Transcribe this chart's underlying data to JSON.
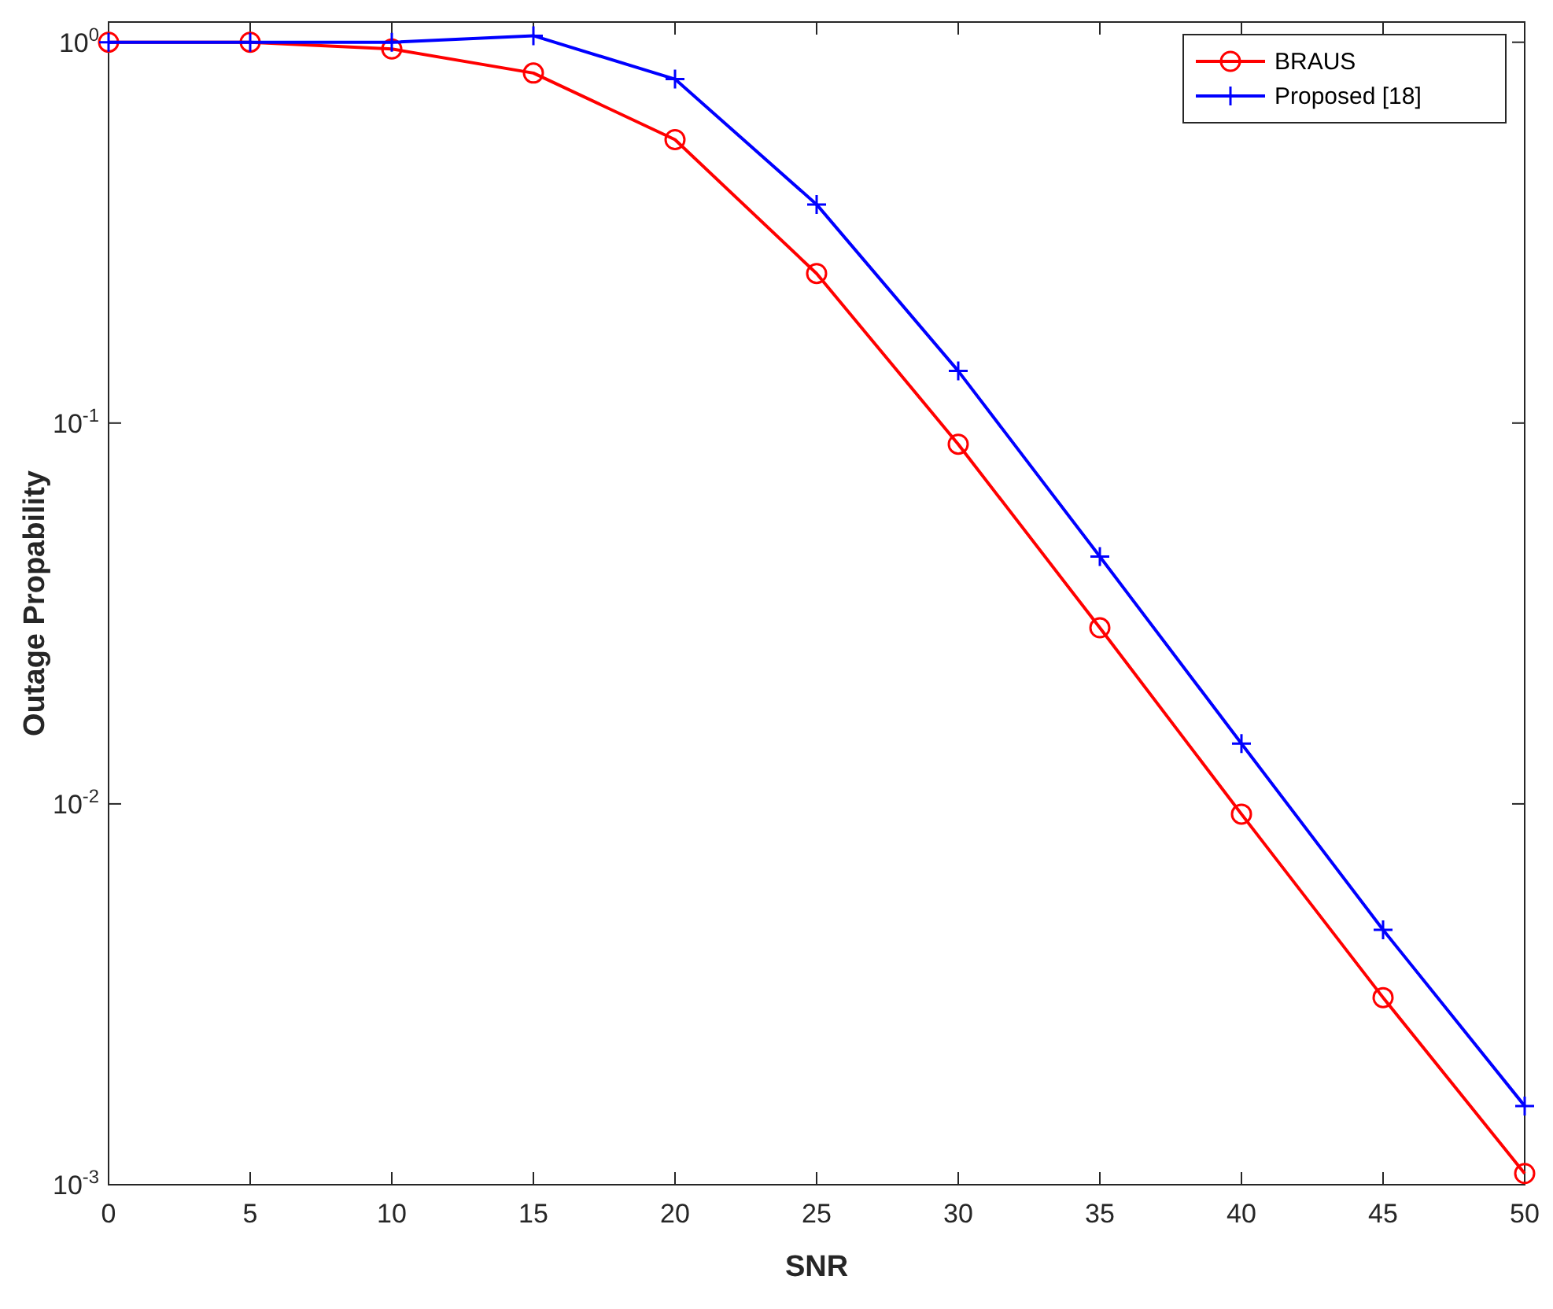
{
  "chart_data": {
    "type": "line",
    "xlabel": "SNR",
    "ylabel": "Outage Propability",
    "log": "y",
    "legend": "top right",
    "grid": false,
    "x": [
      0,
      5,
      10,
      15,
      20,
      25,
      30,
      35,
      40,
      45,
      50
    ],
    "xlim": [
      0,
      50
    ],
    "xticks": [
      0,
      5,
      10,
      15,
      20,
      25,
      30,
      35,
      40,
      45,
      50
    ],
    "ylim": [
      0.001,
      1.13
    ],
    "yticks": [
      {
        "value": 0.001,
        "label": "10$^{-3}$"
      },
      {
        "value": 0.01,
        "label": "10$^{-2}$"
      },
      {
        "value": 0.1,
        "label": "10$^{-1}$"
      },
      {
        "value": 1,
        "label": "10$^{0}$"
      }
    ],
    "series": [
      {
        "name": "BRAUS",
        "color": "#ff0000",
        "marker": "circle",
        "values": [
          1.0,
          1.0,
          0.96,
          0.83,
          0.555,
          0.247,
          0.088,
          0.029,
          0.0094,
          0.0031,
          0.00107
        ]
      },
      {
        "name": "Proposed [18]",
        "color": "#0000ff",
        "marker": "cross",
        "values": [
          1.0,
          1.0,
          1.0,
          1.04,
          0.8,
          0.375,
          0.137,
          0.0446,
          0.0144,
          0.00467,
          0.00161
        ]
      }
    ]
  }
}
